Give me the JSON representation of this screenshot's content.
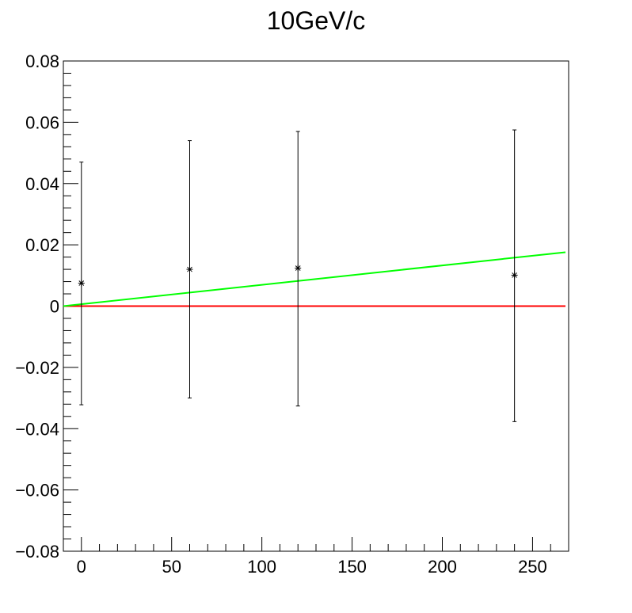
{
  "chart_data": {
    "type": "scatter",
    "title": "10GeV/c",
    "xlabel": "",
    "ylabel": "",
    "xlim": [
      -10,
      270
    ],
    "ylim": [
      -0.08,
      0.08
    ],
    "x_ticks": [
      0,
      50,
      100,
      150,
      200,
      250
    ],
    "x_tick_labels": [
      "0",
      "50",
      "100",
      "150",
      "200",
      "250"
    ],
    "y_ticks": [
      -0.08,
      -0.06,
      -0.04,
      -0.02,
      0,
      0.02,
      0.04,
      0.06,
      0.08
    ],
    "y_tick_labels": [
      "−0.08",
      "−0.06",
      "−0.04",
      "−0.02",
      "0",
      "0.02",
      "0.04",
      "0.06",
      "0.08"
    ],
    "grid": false,
    "points": [
      {
        "x": 0,
        "y": 0.0075,
        "err_low": 0.0397,
        "err_high": 0.0395
      },
      {
        "x": 60,
        "y": 0.012,
        "err_low": 0.042,
        "err_high": 0.042
      },
      {
        "x": 120,
        "y": 0.0124,
        "err_low": 0.045,
        "err_high": 0.0446
      },
      {
        "x": 240,
        "y": 0.0101,
        "err_low": 0.0478,
        "err_high": 0.0474
      }
    ],
    "lines": [
      {
        "color": "#ff0000",
        "x": [
          -10,
          270
        ],
        "y": [
          0,
          0
        ]
      },
      {
        "color": "#00ff00",
        "x": [
          -10,
          270
        ],
        "y": [
          0,
          0.0177
        ]
      }
    ],
    "marker_color": "#000000",
    "frame_color": "#000000"
  }
}
